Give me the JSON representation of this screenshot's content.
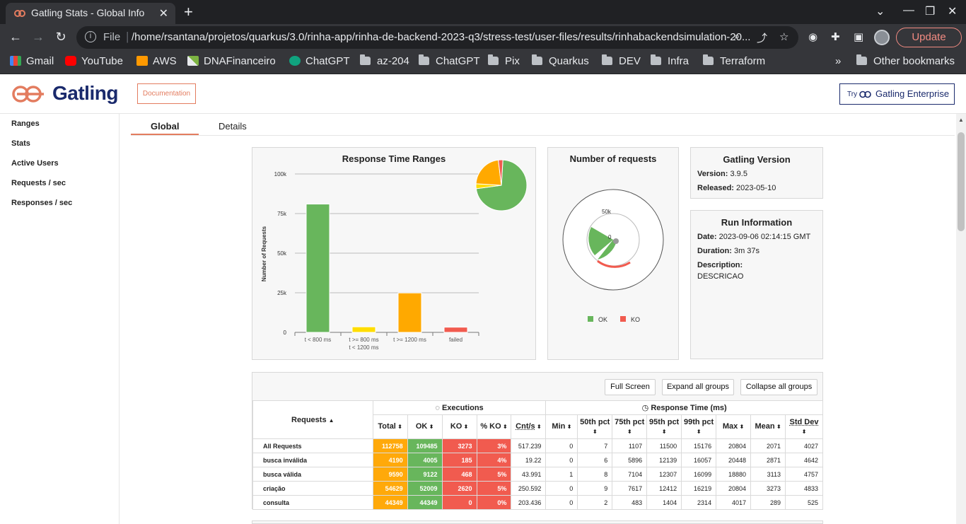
{
  "browser": {
    "tab_title": "Gatling Stats - Global Info",
    "url_scheme": "File",
    "url": "/home/rsantana/projetos/quarkus/3.0/rinha-app/rinha-de-backend-2023-q3/stress-test/user-files/results/rinhabackendsimulation-20...",
    "update_label": "Update",
    "bookmarks": [
      {
        "label": "Gmail",
        "icon": "gmail-icon"
      },
      {
        "label": "YouTube",
        "icon": "youtube-icon"
      },
      {
        "label": "AWS",
        "icon": "aws-icon"
      },
      {
        "label": "DNAFinanceiro",
        "icon": "dna-icon"
      },
      {
        "label": "ChatGPT",
        "icon": "chatgpt-icon"
      },
      {
        "label": "az-204",
        "icon": "folder-icon"
      },
      {
        "label": "ChatGPT",
        "icon": "folder-icon"
      },
      {
        "label": "Pix",
        "icon": "folder-icon"
      },
      {
        "label": "Quarkus",
        "icon": "folder-icon"
      },
      {
        "label": "DEV",
        "icon": "folder-icon"
      },
      {
        "label": "Infra",
        "icon": "folder-icon"
      },
      {
        "label": "Terraform",
        "icon": "folder-icon"
      }
    ],
    "overflow": "»",
    "other_bookmarks": "Other bookmarks"
  },
  "header": {
    "brand": "Gatling",
    "documentation": "Documentation",
    "try": "Try",
    "enterprise": "Gatling Enterprise"
  },
  "sidebar": [
    "Ranges",
    "Stats",
    "Active Users",
    "Requests / sec",
    "Responses / sec"
  ],
  "tabs": [
    "Global",
    "Details"
  ],
  "colors": {
    "ok": "#68b65c",
    "ko": "#f15b4f",
    "mid": "#ffdd00",
    "slow": "#ffa900",
    "accent": "#e37c5f",
    "brand": "#1a2a6c"
  },
  "chart_data": [
    {
      "type": "bar",
      "title": "Response Time Ranges",
      "ylabel": "Number of Requests",
      "ylim": [
        0,
        100000
      ],
      "yticks": [
        "0",
        "25k",
        "50k",
        "75k",
        "100k"
      ],
      "categories": [
        "t < 800 ms",
        "t >= 800 ms t < 1200 ms",
        "t >= 1200 ms",
        "failed"
      ],
      "category_lines": [
        [
          "t < 800 ms"
        ],
        [
          "t >= 800 ms",
          "t < 1200 ms"
        ],
        [
          "t >= 1200 ms"
        ],
        [
          "failed"
        ]
      ],
      "values": [
        81000,
        3500,
        24900,
        3273
      ],
      "bar_colors": [
        "#68b65c",
        "#ffdd00",
        "#ffa900",
        "#f15b4f"
      ],
      "pie": [
        {
          "label": "t < 800 ms",
          "value": 81000,
          "color": "#68b65c"
        },
        {
          "label": "t >= 800 ms t < 1200 ms",
          "value": 3500,
          "color": "#ffdd00"
        },
        {
          "label": "t >= 1200 ms",
          "value": 24900,
          "color": "#ffa900"
        },
        {
          "label": "failed",
          "value": 3273,
          "color": "#f15b4f"
        }
      ]
    },
    {
      "type": "polar",
      "title": "Number of requests",
      "tick_labels": [
        "50k",
        "0"
      ],
      "legend": [
        "OK",
        "KO"
      ],
      "series": [
        {
          "name": "OK",
          "color": "#68b65c"
        },
        {
          "name": "KO",
          "color": "#f15b4f"
        }
      ]
    }
  ],
  "gatling_version": {
    "title": "Gatling Version",
    "version_label": "Version:",
    "version": "3.9.5",
    "released_label": "Released:",
    "released": "2023-05-10"
  },
  "run_info": {
    "title": "Run Information",
    "date_label": "Date:",
    "date": "2023-09-06 02:14:15 GMT",
    "duration_label": "Duration:",
    "duration": "3m 37s",
    "description_label": "Description:",
    "description": "DESCRICAO"
  },
  "stats": {
    "buttons": [
      "Full Screen",
      "Expand all groups",
      "Collapse all groups"
    ],
    "requests_header": "Requests",
    "executions_header": "Executions",
    "response_time_header": "Response Time (ms)",
    "columns": [
      "Total",
      "OK",
      "KO",
      "% KO",
      "Cnt/s",
      "Min",
      "50th pct",
      "75th pct",
      "95th pct",
      "99th pct",
      "Max",
      "Mean",
      "Std Dev"
    ],
    "rows": [
      {
        "name": "All Requests",
        "total": "112758",
        "ok": "109485",
        "ko": "3273",
        "pko": "3%",
        "cnt": "517.239",
        "min": "0",
        "p50": "7",
        "p75": "1107",
        "p95": "11500",
        "p99": "15176",
        "max": "20804",
        "mean": "2071",
        "std": "4027"
      },
      {
        "name": "busca inválida",
        "total": "4190",
        "ok": "4005",
        "ko": "185",
        "pko": "4%",
        "cnt": "19.22",
        "min": "0",
        "p50": "6",
        "p75": "5896",
        "p95": "12139",
        "p99": "16057",
        "max": "20448",
        "mean": "2871",
        "std": "4642"
      },
      {
        "name": "busca válida",
        "total": "9590",
        "ok": "9122",
        "ko": "468",
        "pko": "5%",
        "cnt": "43.991",
        "min": "1",
        "p50": "8",
        "p75": "7104",
        "p95": "12307",
        "p99": "16099",
        "max": "18880",
        "mean": "3113",
        "std": "4757"
      },
      {
        "name": "criação",
        "total": "54629",
        "ok": "52009",
        "ko": "2620",
        "pko": "5%",
        "cnt": "250.592",
        "min": "0",
        "p50": "9",
        "p75": "7617",
        "p95": "12412",
        "p99": "16219",
        "max": "20804",
        "mean": "3273",
        "std": "4833"
      },
      {
        "name": "consulta",
        "total": "44349",
        "ok": "44349",
        "ko": "0",
        "pko": "0%",
        "cnt": "203.436",
        "min": "0",
        "p50": "2",
        "p75": "483",
        "p95": "1404",
        "p99": "2314",
        "max": "4017",
        "mean": "289",
        "std": "525"
      }
    ]
  }
}
